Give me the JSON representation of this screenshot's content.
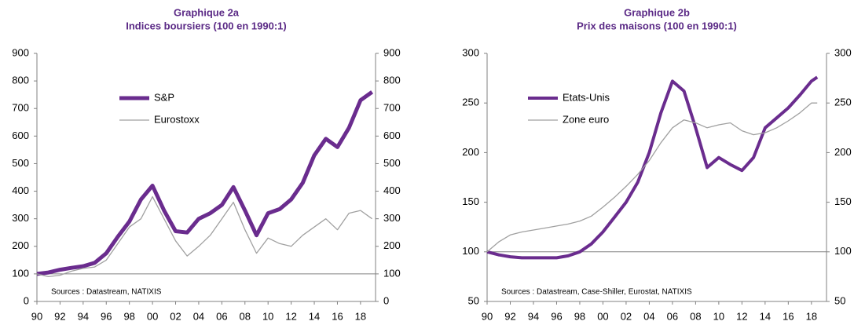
{
  "chart_data": [
    {
      "type": "line",
      "title": "Graphique 2a",
      "subtitle": "Indices boursiers (100 en 1990:1)",
      "annotation": "Sources : Datastream, NATIXIS",
      "x": [
        1990,
        1991,
        1992,
        1993,
        1994,
        1995,
        1996,
        1997,
        1998,
        1999,
        2000,
        2001,
        2002,
        2003,
        2004,
        2005,
        2006,
        2007,
        2008,
        2009,
        2010,
        2011,
        2012,
        2013,
        2014,
        2015,
        2016,
        2017,
        2018,
        2019
      ],
      "series": [
        {
          "name": "S&P",
          "color": "#6a2c8e",
          "width": 5,
          "values": [
            100,
            105,
            115,
            122,
            128,
            140,
            175,
            235,
            290,
            370,
            420,
            330,
            255,
            250,
            300,
            320,
            350,
            415,
            330,
            240,
            320,
            335,
            370,
            430,
            530,
            590,
            560,
            630,
            730,
            760
          ]
        },
        {
          "name": "Eurostoxx",
          "color": "#a0a0a0",
          "width": 1.3,
          "values": [
            100,
            90,
            95,
            110,
            120,
            125,
            150,
            210,
            270,
            300,
            380,
            300,
            220,
            165,
            200,
            240,
            300,
            360,
            260,
            175,
            230,
            210,
            200,
            240,
            270,
            300,
            260,
            320,
            330,
            300
          ]
        }
      ],
      "xlim": [
        1990,
        2019.3
      ],
      "xticks": [
        {
          "value": 1990,
          "label": "90"
        },
        {
          "value": 1992,
          "label": "92"
        },
        {
          "value": 1994,
          "label": "94"
        },
        {
          "value": 1996,
          "label": "96"
        },
        {
          "value": 1998,
          "label": "98"
        },
        {
          "value": 2000,
          "label": "00"
        },
        {
          "value": 2002,
          "label": "02"
        },
        {
          "value": 2004,
          "label": "04"
        },
        {
          "value": 2006,
          "label": "06"
        },
        {
          "value": 2008,
          "label": "08"
        },
        {
          "value": 2010,
          "label": "10"
        },
        {
          "value": 2012,
          "label": "12"
        },
        {
          "value": 2014,
          "label": "14"
        },
        {
          "value": 2016,
          "label": "16"
        },
        {
          "value": 2018,
          "label": "18"
        }
      ],
      "ylim": [
        0,
        900
      ],
      "yticks": [
        0,
        100,
        200,
        300,
        400,
        500,
        600,
        700,
        800,
        900
      ],
      "y2lim": [
        0,
        900
      ],
      "y2ticks": [
        0,
        100,
        200,
        300,
        400,
        500,
        600,
        700,
        800,
        900
      ],
      "reference_line": 100,
      "legend": "upper left"
    },
    {
      "type": "line",
      "title": "Graphique 2b",
      "subtitle": "Prix des maisons (100 en 1990:1)",
      "annotation": "Sources : Datastream, Case-Shiller, Eurostat, NATIXIS",
      "x": [
        1990,
        1991,
        1992,
        1993,
        1994,
        1995,
        1996,
        1997,
        1998,
        1999,
        2000,
        2001,
        2002,
        2003,
        2004,
        2005,
        2006,
        2007,
        2008,
        2009,
        2010,
        2011,
        2012,
        2013,
        2014,
        2015,
        2016,
        2017,
        2018,
        2018.5
      ],
      "series": [
        {
          "name": "Etats-Unis",
          "color": "#6a2c8e",
          "width": 4,
          "values": [
            100,
            97,
            95,
            94,
            94,
            94,
            94,
            96,
            100,
            108,
            120,
            135,
            150,
            170,
            200,
            240,
            272,
            262,
            225,
            185,
            195,
            188,
            182,
            195,
            225,
            235,
            245,
            258,
            272,
            276
          ]
        },
        {
          "name": "Zone euro",
          "color": "#a0a0a0",
          "width": 1.3,
          "values": [
            100,
            110,
            117,
            120,
            122,
            124,
            126,
            128,
            131,
            136,
            145,
            155,
            166,
            178,
            192,
            210,
            225,
            233,
            230,
            225,
            228,
            230,
            222,
            218,
            220,
            225,
            232,
            240,
            250,
            250
          ]
        }
      ],
      "xlim": [
        1990,
        2019.3
      ],
      "xticks": [
        {
          "value": 1990,
          "label": "90"
        },
        {
          "value": 1992,
          "label": "92"
        },
        {
          "value": 1994,
          "label": "94"
        },
        {
          "value": 1996,
          "label": "96"
        },
        {
          "value": 1998,
          "label": "98"
        },
        {
          "value": 2000,
          "label": "00"
        },
        {
          "value": 2002,
          "label": "02"
        },
        {
          "value": 2004,
          "label": "04"
        },
        {
          "value": 2006,
          "label": "06"
        },
        {
          "value": 2008,
          "label": "08"
        },
        {
          "value": 2010,
          "label": "10"
        },
        {
          "value": 2012,
          "label": "12"
        },
        {
          "value": 2014,
          "label": "14"
        },
        {
          "value": 2016,
          "label": "16"
        },
        {
          "value": 2018,
          "label": "18"
        }
      ],
      "ylim": [
        50,
        300
      ],
      "yticks": [
        50,
        100,
        150,
        200,
        250,
        300
      ],
      "y2lim": [
        50,
        300
      ],
      "y2ticks": [
        50,
        100,
        150,
        200,
        250,
        300
      ],
      "reference_line": 100,
      "legend": "upper left"
    }
  ]
}
